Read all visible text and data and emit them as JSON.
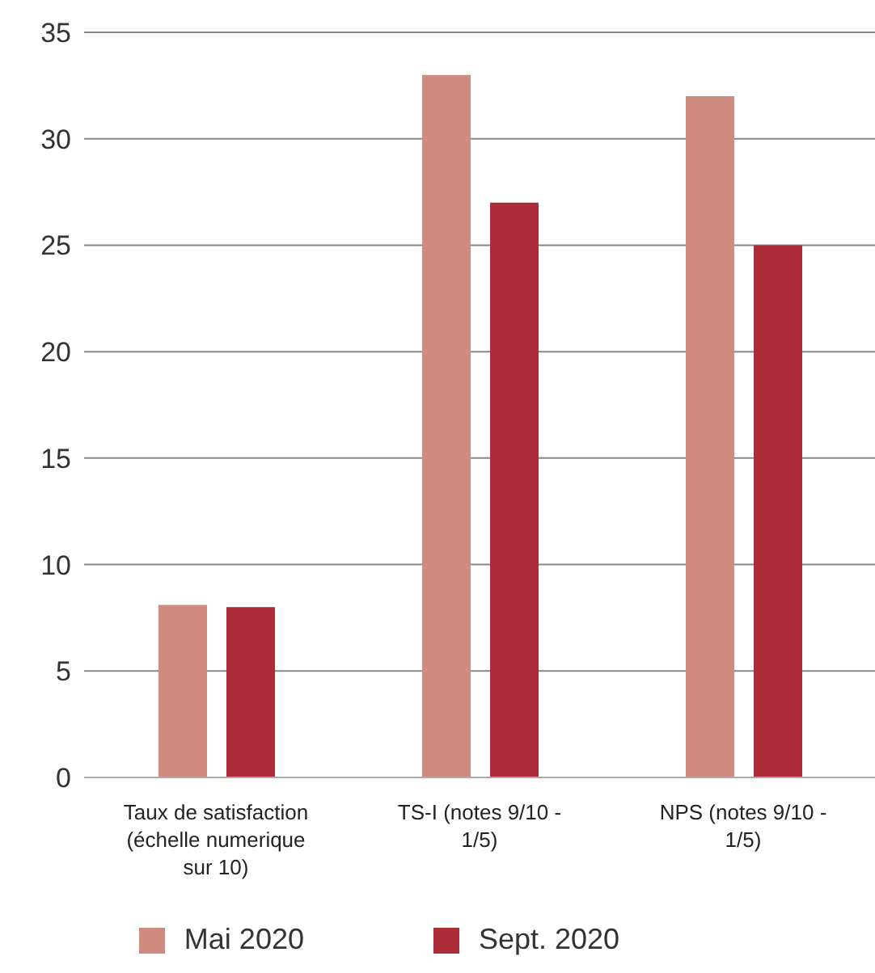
{
  "chart_data": {
    "type": "bar",
    "categories": [
      "Taux de satisfaction (échelle numerique sur 10)",
      "TS-I (notes 9/10 - 1/5)",
      "NPS (notes 9/10 - 1/5)"
    ],
    "series": [
      {
        "name": "Mai 2020",
        "color": "#d08b80",
        "values": [
          8.1,
          33,
          32
        ]
      },
      {
        "name": "Sept. 2020",
        "color": "#ad2c39",
        "values": [
          8,
          27,
          25
        ]
      }
    ],
    "ylim": [
      0,
      35
    ],
    "yticks": [
      0,
      5,
      10,
      15,
      20,
      25,
      30,
      35
    ],
    "grid": "y",
    "legend": "bottom"
  }
}
